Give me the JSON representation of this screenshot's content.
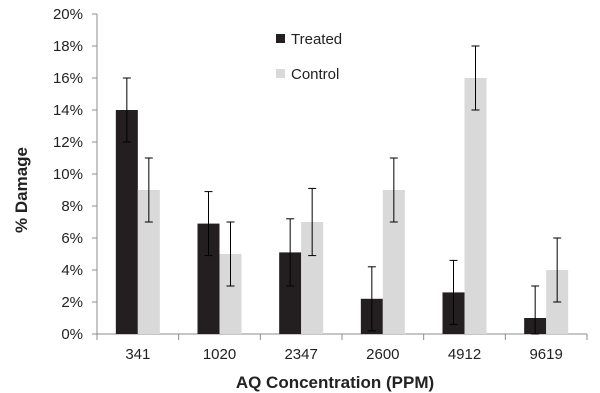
{
  "chart_data": {
    "type": "bar",
    "title": "",
    "xlabel": "AQ Concentration (PPM)",
    "ylabel": "% Damage",
    "categories": [
      "341",
      "1020",
      "2347",
      "2600",
      "4912",
      "9619"
    ],
    "ylim": [
      0,
      20
    ],
    "y_ticks": [
      "0%",
      "2%",
      "4%",
      "6%",
      "8%",
      "10%",
      "12%",
      "14%",
      "16%",
      "18%",
      "20%"
    ],
    "series": [
      {
        "name": "Treated",
        "color": "#231f20",
        "values": [
          14.0,
          6.9,
          5.1,
          2.2,
          2.6,
          1.0
        ],
        "errors": [
          2.0,
          2.0,
          2.1,
          2.0,
          2.0,
          2.0
        ]
      },
      {
        "name": "Control",
        "color": "#d9d9d9",
        "values": [
          9.0,
          5.0,
          7.0,
          9.0,
          16.0,
          4.0
        ],
        "errors": [
          2.0,
          2.0,
          2.1,
          2.0,
          2.0,
          2.0
        ]
      }
    ],
    "error_bars": true,
    "grid": false,
    "legend_position": "top-center"
  }
}
